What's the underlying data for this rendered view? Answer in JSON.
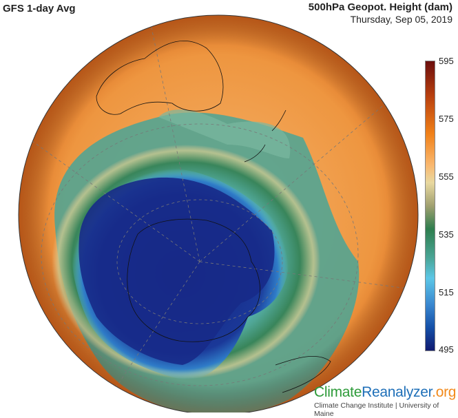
{
  "header": {
    "left_title": "GFS 1-day Avg",
    "right_title": "500hPa Geopot. Height (dam)",
    "date": "Thursday, Sep 05, 2019"
  },
  "colorbar": {
    "unit": "dam",
    "min": 495,
    "max": 595,
    "ticks": [
      "595",
      "575",
      "555",
      "535",
      "515",
      "495"
    ],
    "colors": [
      "#6b0d0d",
      "#f08018",
      "#e8d8a0",
      "#2e7d4e",
      "#5cc6e6",
      "#1550a8",
      "#101a70"
    ]
  },
  "branding": {
    "logo_part1": "Climate",
    "logo_part2": "Reanalyzer",
    "logo_part3": ".org",
    "subtitle": "Climate Change Institute | University of Maine"
  }
}
